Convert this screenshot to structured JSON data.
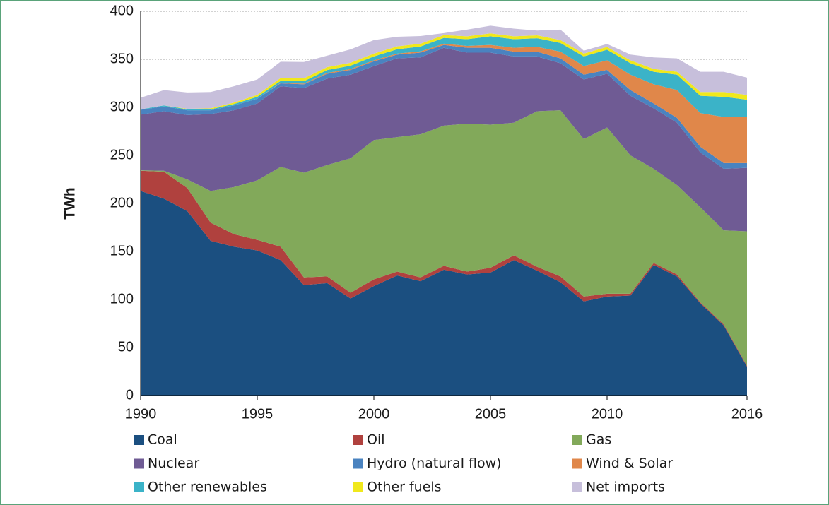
{
  "chart_data": {
    "type": "stacked-area",
    "y_label": "TWh",
    "x": [
      1990,
      1991,
      1992,
      1993,
      1994,
      1995,
      1996,
      1997,
      1998,
      1999,
      2000,
      2001,
      2002,
      2003,
      2004,
      2005,
      2006,
      2007,
      2008,
      2009,
      2010,
      2011,
      2012,
      2013,
      2014,
      2015,
      2016
    ],
    "xlim": [
      1990,
      2016
    ],
    "xticks": [
      1990,
      1995,
      2000,
      2005,
      2010,
      2016
    ],
    "ylim": [
      0,
      400
    ],
    "yticks": [
      0,
      50,
      100,
      150,
      200,
      250,
      300,
      350,
      400
    ],
    "grid": true,
    "series": [
      {
        "name": "Coal",
        "color": "#1b4f80",
        "values": [
          213,
          205,
          192,
          161,
          155,
          151,
          141,
          115,
          117,
          101,
          114,
          125,
          119,
          131,
          126,
          128,
          141,
          130,
          118,
          98,
          103,
          104,
          136,
          124,
          96,
          73,
          30
        ]
      },
      {
        "name": "Oil",
        "color": "#b0413e",
        "values": [
          21,
          28,
          24,
          19,
          13,
          11,
          14,
          8,
          7,
          6,
          7,
          4,
          4,
          4,
          3,
          5,
          5,
          4,
          6,
          5,
          3,
          2,
          2,
          2,
          1,
          1,
          1
        ]
      },
      {
        "name": "Gas",
        "color": "#82a95a",
        "values": [
          0.5,
          1,
          9,
          33,
          49,
          62,
          83,
          109,
          116,
          140,
          145,
          140,
          149,
          146,
          154,
          149,
          138,
          162,
          173,
          164,
          173,
          144,
          98,
          93,
          99,
          98,
          140
        ]
      },
      {
        "name": "Nuclear",
        "color": "#6f5b94",
        "values": [
          58,
          62,
          67,
          80,
          80,
          80,
          84,
          88,
          90,
          87,
          77,
          82,
          80,
          81,
          74,
          75,
          69,
          57,
          49,
          62,
          56,
          62,
          63,
          65,
          57,
          64,
          66
        ]
      },
      {
        "name": "Hydro (natural flow)",
        "color": "#4a83c0",
        "values": [
          5,
          5,
          5,
          4,
          5,
          5,
          3,
          4,
          5,
          5,
          5,
          4,
          5,
          3,
          5,
          5,
          5,
          5,
          5,
          5,
          4,
          6,
          5,
          5,
          6,
          6,
          5
        ]
      },
      {
        "name": "Wind & Solar",
        "color": "#e0874a",
        "values": [
          0,
          0,
          0,
          0,
          0,
          0,
          0.5,
          0.7,
          0.9,
          0.9,
          1,
          1,
          1.3,
          1.3,
          2,
          3,
          4,
          5,
          7,
          9,
          10,
          16,
          20,
          29,
          35,
          48,
          48
        ]
      },
      {
        "name": "Other renewables",
        "color": "#3bb3c8",
        "values": [
          0.5,
          1,
          1,
          1,
          1.5,
          2,
          2,
          2.5,
          3,
          3.5,
          4,
          4.5,
          5,
          6,
          7,
          9,
          9,
          9,
          9,
          10,
          11,
          12,
          13,
          16,
          18,
          21,
          18
        ]
      },
      {
        "name": "Other fuels",
        "color": "#f0e81c",
        "values": [
          0,
          0,
          0.5,
          1,
          1.5,
          2,
          3,
          3,
          3,
          3,
          3,
          3,
          3,
          3,
          3,
          3,
          3,
          3,
          3,
          3,
          3,
          3,
          3,
          3,
          4,
          5,
          5
        ]
      },
      {
        "name": "Net imports",
        "color": "#c7bfdb",
        "values": [
          12,
          16,
          17,
          17,
          17,
          16,
          17,
          17,
          12,
          14,
          14,
          10,
          8,
          2,
          7,
          8,
          8,
          5,
          11,
          3,
          3,
          6,
          12,
          14,
          21,
          21,
          18
        ]
      }
    ]
  }
}
